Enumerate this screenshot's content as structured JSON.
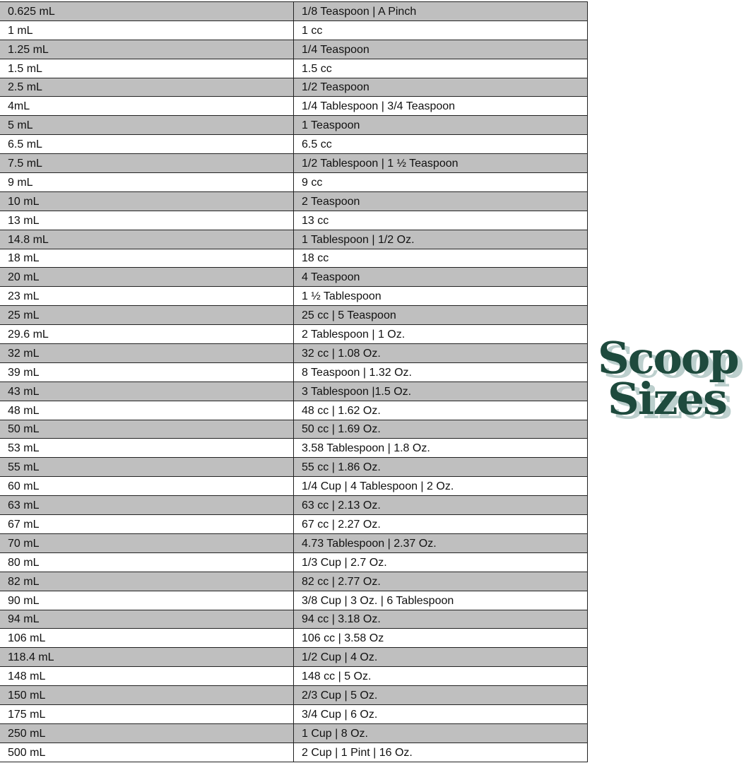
{
  "rows": [
    [
      "0.625 mL",
      "1/8 Teaspoon | A Pinch"
    ],
    [
      "1 mL",
      "1 cc"
    ],
    [
      "1.25 mL",
      "1/4 Teaspoon"
    ],
    [
      "1.5 mL",
      "1.5 cc"
    ],
    [
      "2.5 mL",
      "1/2 Teaspoon"
    ],
    [
      "4mL",
      "1/4 Tablespoon | 3/4 Teaspoon"
    ],
    [
      "5 mL",
      "1 Teaspoon"
    ],
    [
      "6.5 mL",
      "6.5 cc"
    ],
    [
      "7.5 mL",
      "1/2 Tablespoon | 1 ½ Teaspoon"
    ],
    [
      "9 mL",
      "9 cc"
    ],
    [
      "10 mL",
      "2 Teaspoon"
    ],
    [
      "13 mL",
      "13 cc"
    ],
    [
      "14.8 mL",
      "1 Tablespoon | 1/2 Oz."
    ],
    [
      "18 mL",
      "18 cc"
    ],
    [
      "20 mL",
      "4 Teaspoon"
    ],
    [
      "23 mL",
      "1 ½ Tablespoon"
    ],
    [
      "25 mL",
      "25 cc | 5 Teaspoon"
    ],
    [
      "29.6 mL",
      "2 Tablespoon | 1 Oz."
    ],
    [
      "32 mL",
      "32 cc | 1.08 Oz."
    ],
    [
      "39 mL",
      "8 Teaspoon | 1.32 Oz."
    ],
    [
      "43 mL",
      "3 Tablespoon |1.5 Oz."
    ],
    [
      "48 mL",
      "48 cc | 1.62 Oz."
    ],
    [
      "50 mL",
      "50 cc | 1.69 Oz."
    ],
    [
      "53 mL",
      "3.58 Tablespoon | 1.8 Oz."
    ],
    [
      "55 mL",
      "55 cc | 1.86 Oz."
    ],
    [
      "60 mL",
      "1/4 Cup | 4 Tablespoon | 2 Oz."
    ],
    [
      "63 mL",
      "63 cc | 2.13 Oz."
    ],
    [
      "67 mL",
      "67 cc | 2.27 Oz."
    ],
    [
      "70 mL",
      "4.73 Tablespoon | 2.37 Oz."
    ],
    [
      "80 mL",
      "1/3 Cup | 2.7 Oz."
    ],
    [
      "82 mL",
      "82 cc | 2.77 Oz."
    ],
    [
      "90 mL",
      "3/8 Cup | 3 Oz. | 6 Tablespoon"
    ],
    [
      "94 mL",
      "94 cc | 3.18 Oz."
    ],
    [
      "106 mL",
      "106 cc | 3.58 Oz"
    ],
    [
      "118.4 mL",
      "1/2 Cup | 4 Oz."
    ],
    [
      "148 mL",
      "148 cc | 5 Oz."
    ],
    [
      "150 mL",
      "2/3 Cup | 5 Oz."
    ],
    [
      "175 mL",
      "3/4 Cup | 6 Oz."
    ],
    [
      "250 mL",
      "1 Cup | 8 Oz."
    ],
    [
      "500 mL",
      "2 Cup | 1 Pint | 16 Oz."
    ]
  ],
  "logo": {
    "line1": "Scoop",
    "line2": "Sizes",
    "color": "#1e4a3d",
    "shadow_color": "#bccfcd"
  },
  "colors": {
    "stripe": "#bfbfbf",
    "border": "#222222"
  }
}
